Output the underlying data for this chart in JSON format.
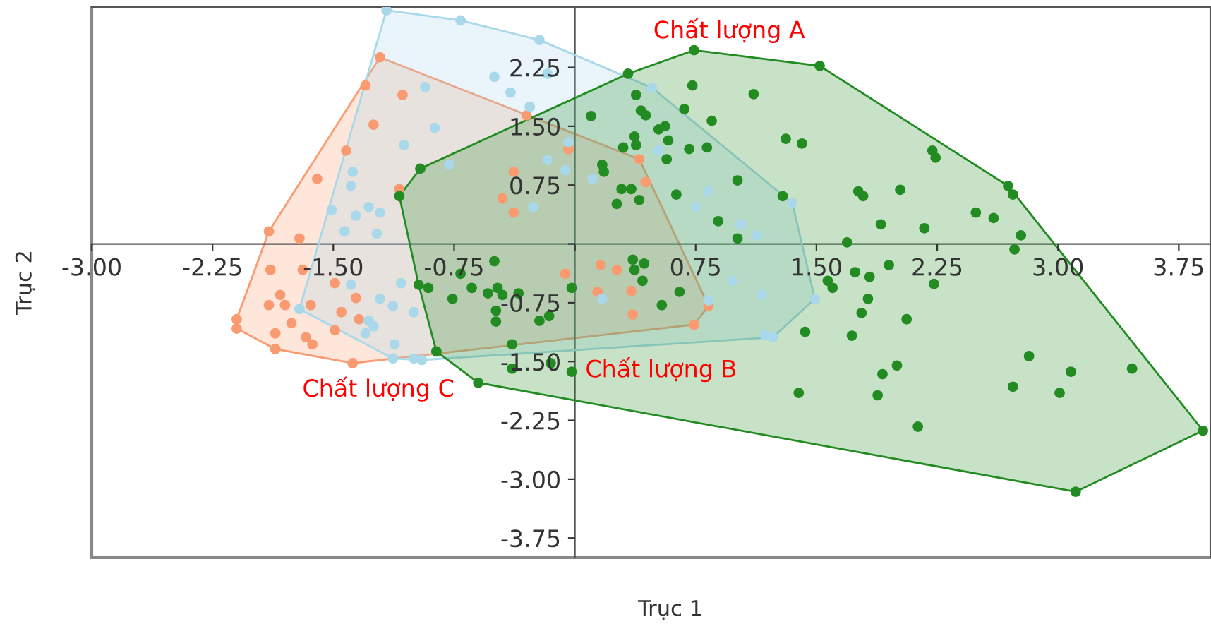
{
  "chart_data": {
    "type": "scatter",
    "xlabel": "Trục 1",
    "ylabel": "Trục 2",
    "xlim": [
      -3.0,
      3.95
    ],
    "ylim": [
      -4.0,
      3.02
    ],
    "xticks": [
      {
        "value": -3,
        "label": "-3.00"
      },
      {
        "value": -2.25,
        "label": "-2.25"
      },
      {
        "value": -1.5,
        "label": "-1.50"
      },
      {
        "value": -0.75,
        "label": "-0.75"
      },
      {
        "value": 0,
        "label": null
      },
      {
        "value": 0.75,
        "label": "0.75"
      },
      {
        "value": 1.5,
        "label": "1.50"
      },
      {
        "value": 2.25,
        "label": "2.25"
      },
      {
        "value": 3.0,
        "label": "3.00"
      },
      {
        "value": 3.75,
        "label": "3.75"
      }
    ],
    "yticks": [
      {
        "value": -3.75,
        "label": "-3.75"
      },
      {
        "value": -3.0,
        "label": "-3.00"
      },
      {
        "value": -2.25,
        "label": "-2.25"
      },
      {
        "value": -1.5,
        "label": "-1.50"
      },
      {
        "value": -0.75,
        "label": "-0.75"
      },
      {
        "value": 0,
        "label": null
      },
      {
        "value": 0.75,
        "label": "0.75"
      },
      {
        "value": 1.5,
        "label": "1.50"
      },
      {
        "value": 2.25,
        "label": "2.25"
      }
    ],
    "grid": false,
    "marker": "circle",
    "annotations": [
      "Chất lượng C",
      "Chất lượng B",
      "Chất lượng A"
    ],
    "series": [
      {
        "color": "#fa9a70",
        "x": [
          -1.21,
          -1.3,
          -1.9,
          -2.1,
          -2.1,
          -1.86,
          -1.38,
          0.74,
          0.83,
          0.4,
          -0.3,
          -1.07,
          -1.25,
          -1.42,
          -1.6,
          -1.09,
          -1.71,
          -1.89,
          -1.83,
          -1.9,
          -1.8,
          -1.64,
          -1.76,
          -1.86,
          -1.67,
          -1.63,
          -1.49,
          -1.45,
          -1.36,
          -1.34,
          -1.49,
          -1.69,
          -0.45,
          -0.38,
          -0.04,
          0.44,
          -0.38,
          0.14,
          0.35,
          0.36,
          null,
          0.26,
          -0.06,
          0.16
        ],
        "values": [
          2.38,
          2.02,
          0.16,
          -0.96,
          -1.08,
          -1.34,
          -1.52,
          -1.03,
          -0.79,
          1.08,
          1.64,
          1.9,
          1.52,
          1.19,
          0.83,
          0.7,
          0.07,
          -0.33,
          -0.65,
          -0.78,
          -0.78,
          -0.78,
          -1.01,
          -1.14,
          -1.19,
          -1.28,
          -1.1,
          -0.87,
          -0.69,
          -0.96,
          -0.5,
          -0.33,
          0.58,
          0.4,
          1.21,
          0.79,
          0.92,
          -0.61,
          -0.6,
          -0.9,
          null,
          -0.33,
          -0.38,
          -0.27
        ]
      },
      {
        "color": "#a8d8ea",
        "x": [
          -1.17,
          -0.71,
          0.48,
          1.35,
          1.49,
          1.23,
          -0.95,
          -1.71,
          -0.93,
          -0.87,
          -1.06,
          -0.78,
          -1.38,
          -1.39,
          -1.28,
          -1.21,
          -1.51,
          -1.36,
          -1.43,
          -1.23,
          -0.22,
          -0.5,
          -0.4,
          -0.28,
          -0.17,
          -0.04,
          -0.17,
          -0.06,
          0.11,
          0.83,
          0.75,
          1.03,
          1.13,
          0.52,
          -0.26,
          0.17,
          0.83,
          0.98,
          1.16,
          1.18,
          -1.39,
          -1.21,
          -1.13,
          -1.28,
          -1.25,
          -1.3,
          -1.12,
          -1.13,
          -1.0,
          -1.0,
          -1.08
        ],
        "values": [
          2.98,
          2.85,
          1.99,
          0.52,
          -0.7,
          -1.19,
          -1.48,
          -0.83,
          2.0,
          1.48,
          1.26,
          1.01,
          0.92,
          0.74,
          0.47,
          0.4,
          0.43,
          0.36,
          0.16,
          0.13,
          2.6,
          2.13,
          1.93,
          1.75,
          2.17,
          1.3,
          1.07,
          0.94,
          0.83,
          0.67,
          0.47,
          0.25,
          0.11,
          1.19,
          0.47,
          -0.7,
          -0.72,
          -0.47,
          -0.65,
          -1.16,
          -0.52,
          -0.7,
          -0.79,
          -0.98,
          -1.05,
          -1.14,
          -1.28,
          -1.46,
          -1.46,
          -0.87,
          -0.5
        ]
      },
      {
        "color": "#228b22",
        "x": [
          -0.96,
          -1.09,
          0.33,
          0.74,
          1.52,
          2.22,
          2.69,
          2.72,
          3.9,
          3.11,
          -0.6,
          -0.86,
          -0.97,
          0.1,
          0.38,
          0.73,
          1.11,
          0.41,
          0.44,
          0.68,
          0.85,
          0.52,
          0.56,
          0.37,
          0.38,
          0.3,
          0.58,
          0.71,
          0.82,
          0.57,
          1.31,
          1.41,
          0.17,
          0.18,
          0.29,
          0.35,
          0.4,
          0.26,
          0.63,
          1.01,
          1.29,
          0.89,
          1.01,
          2.24,
          1.76,
          1.79,
          2.02,
          2.49,
          2.6,
          1.9,
          2.17,
          2.77,
          2.73,
          1.69,
          1.57,
          1.6,
          1.74,
          1.83,
          1.95,
          2.23,
          1.82,
          1.78,
          2.06,
          1.72,
          2.0,
          1.91,
          1.88,
          2.13,
          2.82,
          2.72,
          3.01,
          3.08,
          3.46,
          1.43,
          1.39,
          0.65,
          0.54,
          0.43,
          0.37,
          -0.64,
          -0.54,
          -0.48,
          -0.35,
          -0.49,
          -0.49,
          -0.22,
          -0.16,
          -0.39,
          -0.39,
          -0.15,
          -0.02,
          -0.02,
          -0.91,
          -0.76,
          -0.71,
          -0.5,
          -0.45,
          0.36,
          0.42
        ],
        "values": [
          0.96,
          0.61,
          2.17,
          2.47,
          2.27,
          1.19,
          0.74,
          0.63,
          -2.38,
          -3.16,
          -1.77,
          -1.37,
          -0.52,
          1.63,
          1.9,
          2.02,
          1.91,
          1.7,
          1.64,
          1.72,
          1.57,
          1.46,
          1.5,
          1.37,
          1.26,
          1.23,
          1.32,
          1.21,
          1.23,
          1.08,
          1.34,
          1.28,
          1.01,
          0.92,
          0.7,
          0.7,
          0.56,
          0.51,
          0.63,
          0.81,
          0.61,
          0.29,
          0.07,
          1.1,
          0.67,
          0.61,
          0.69,
          0.4,
          0.33,
          0.25,
          0.2,
          0.11,
          -0.07,
          0.02,
          -0.47,
          -0.56,
          -0.36,
          -0.42,
          -0.27,
          -0.51,
          -0.7,
          -0.88,
          -0.96,
          -1.17,
          -1.55,
          -1.66,
          -1.93,
          -2.33,
          -1.43,
          -1.82,
          -1.9,
          -1.63,
          -1.59,
          -1.12,
          -1.9,
          -0.61,
          -0.78,
          -0.25,
          -0.33,
          -0.56,
          -0.63,
          -0.56,
          -0.63,
          -0.85,
          -0.99,
          -0.98,
          -0.92,
          -1.28,
          -1.59,
          -1.52,
          -1.63,
          -0.56,
          -0.56,
          -0.7,
          -0.38,
          -0.22,
          -0.65,
          -0.2,
          -0.47
        ]
      }
    ]
  }
}
